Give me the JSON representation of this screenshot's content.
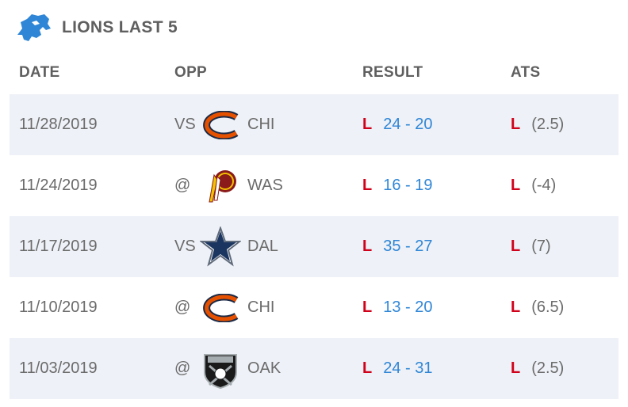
{
  "header": {
    "title": "LIONS LAST 5",
    "logo_icon": "lions-logo-icon"
  },
  "columns": {
    "date": "DATE",
    "opp": "OPP",
    "result": "RESULT",
    "ats": "ATS"
  },
  "colors": {
    "loss": "#d0021b",
    "score": "#2f86d6",
    "row_shade": "#eef1f7"
  },
  "games": [
    {
      "date": "11/28/2019",
      "prefix": "VS",
      "team": "CHI",
      "team_icon": "bears-logo-icon",
      "result": "L",
      "score": "24 - 20",
      "ats_result": "L",
      "ats_line": "(2.5)"
    },
    {
      "date": "11/24/2019",
      "prefix": "@",
      "team": "WAS",
      "team_icon": "redskins-logo-icon",
      "result": "L",
      "score": "16 - 19",
      "ats_result": "L",
      "ats_line": "(-4)"
    },
    {
      "date": "11/17/2019",
      "prefix": "VS",
      "team": "DAL",
      "team_icon": "cowboys-logo-icon",
      "result": "L",
      "score": "35 - 27",
      "ats_result": "L",
      "ats_line": "(7)"
    },
    {
      "date": "11/10/2019",
      "prefix": "@",
      "team": "CHI",
      "team_icon": "bears-logo-icon",
      "result": "L",
      "score": "13 - 20",
      "ats_result": "L",
      "ats_line": "(6.5)"
    },
    {
      "date": "11/03/2019",
      "prefix": "@",
      "team": "OAK",
      "team_icon": "raiders-logo-icon",
      "result": "L",
      "score": "24 - 31",
      "ats_result": "L",
      "ats_line": "(2.5)"
    }
  ]
}
